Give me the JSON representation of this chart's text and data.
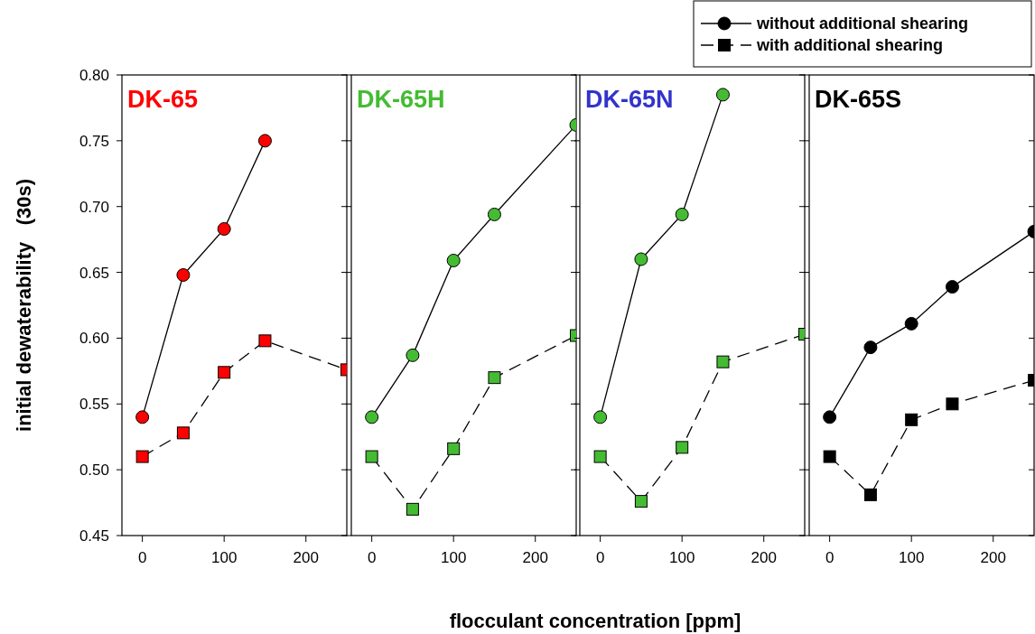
{
  "chart_data": [
    {
      "type": "line",
      "title": "DK-65",
      "ylabel": "initial dewaterability   (30s)",
      "x": [
        0,
        50,
        100,
        150,
        250
      ],
      "xlim": [
        -25,
        250
      ],
      "xticks": [
        0,
        100,
        200
      ],
      "ylim": [
        0.45,
        0.8
      ],
      "yticks": [
        0.45,
        {
          "value": 0.5,
          "label": "0.50"
        },
        0.55,
        {
          "value": 0.6,
          "label": "0.60"
        },
        0.65,
        {
          "value": 0.7,
          "label": "0.70"
        },
        0.75,
        {
          "value": 0.8,
          "label": "0.80"
        }
      ],
      "series": [
        {
          "color": "#ff0000",
          "marker": "circle",
          "line_style": "solid",
          "values": [
            0.54,
            0.648,
            0.683,
            0.75,
            null
          ]
        },
        {
          "color": "#ff0000",
          "marker": "square",
          "line_style": "dashed",
          "values": [
            0.51,
            0.528,
            0.574,
            0.598,
            0.576
          ]
        }
      ]
    },
    {
      "type": "line",
      "title": "DK-65H",
      "x": [
        0,
        50,
        100,
        150,
        250
      ],
      "xlim": [
        -25,
        250
      ],
      "xticks": [
        0,
        100,
        200
      ],
      "ylim": [
        0.45,
        0.8
      ],
      "yticks": [
        0.45,
        0.5,
        0.55,
        0.6,
        0.65,
        0.7,
        0.75,
        0.8
      ],
      "tick_labels": "x",
      "series": [
        {
          "color": "#44bb33",
          "marker": "circle",
          "line_style": "solid",
          "values": [
            0.54,
            0.587,
            0.659,
            0.694,
            0.762
          ]
        },
        {
          "color": "#44bb33",
          "marker": "square",
          "line_style": "dashed",
          "values": [
            0.51,
            0.47,
            0.516,
            0.57,
            0.602
          ]
        }
      ]
    },
    {
      "type": "line",
      "title": "DK-65N",
      "x": [
        0,
        50,
        100,
        150,
        250
      ],
      "xlim": [
        -25,
        250
      ],
      "xticks": [
        0,
        100,
        200
      ],
      "ylim": [
        0.45,
        0.8
      ],
      "yticks": [
        0.45,
        0.5,
        0.55,
        0.6,
        0.65,
        0.7,
        0.75,
        0.8
      ],
      "tick_labels": "x",
      "series": [
        {
          "color": "#44bb33",
          "marker": "circle",
          "line_style": "solid",
          "values": [
            0.54,
            0.66,
            0.694,
            0.785,
            null
          ]
        },
        {
          "color": "#44bb33",
          "marker": "square",
          "line_style": "dashed",
          "values": [
            0.51,
            0.476,
            0.517,
            0.582,
            0.603
          ]
        }
      ]
    },
    {
      "type": "line",
      "title": "DK-65S",
      "xlabel": "flocculant concentration [ppm]",
      "x": [
        0,
        50,
        100,
        150,
        250
      ],
      "xlim": [
        -25,
        250
      ],
      "xticks": [
        0,
        100,
        200
      ],
      "ylim": [
        0.45,
        0.8
      ],
      "yticks": [
        0.45,
        0.5,
        0.55,
        0.6,
        0.65,
        0.7,
        0.75,
        0.8
      ],
      "tick_labels": "x",
      "legend": "top",
      "series": [
        {
          "name": "without additional shearing",
          "color": "#000000",
          "marker": "circle",
          "line_style": "solid",
          "values": [
            0.54,
            0.593,
            0.611,
            0.639,
            0.681
          ]
        },
        {
          "name": "with additional shearing",
          "color": "#000000",
          "marker": "square",
          "line_style": "dashed",
          "values": [
            0.51,
            0.481,
            0.538,
            0.55,
            0.568
          ]
        }
      ]
    }
  ]
}
